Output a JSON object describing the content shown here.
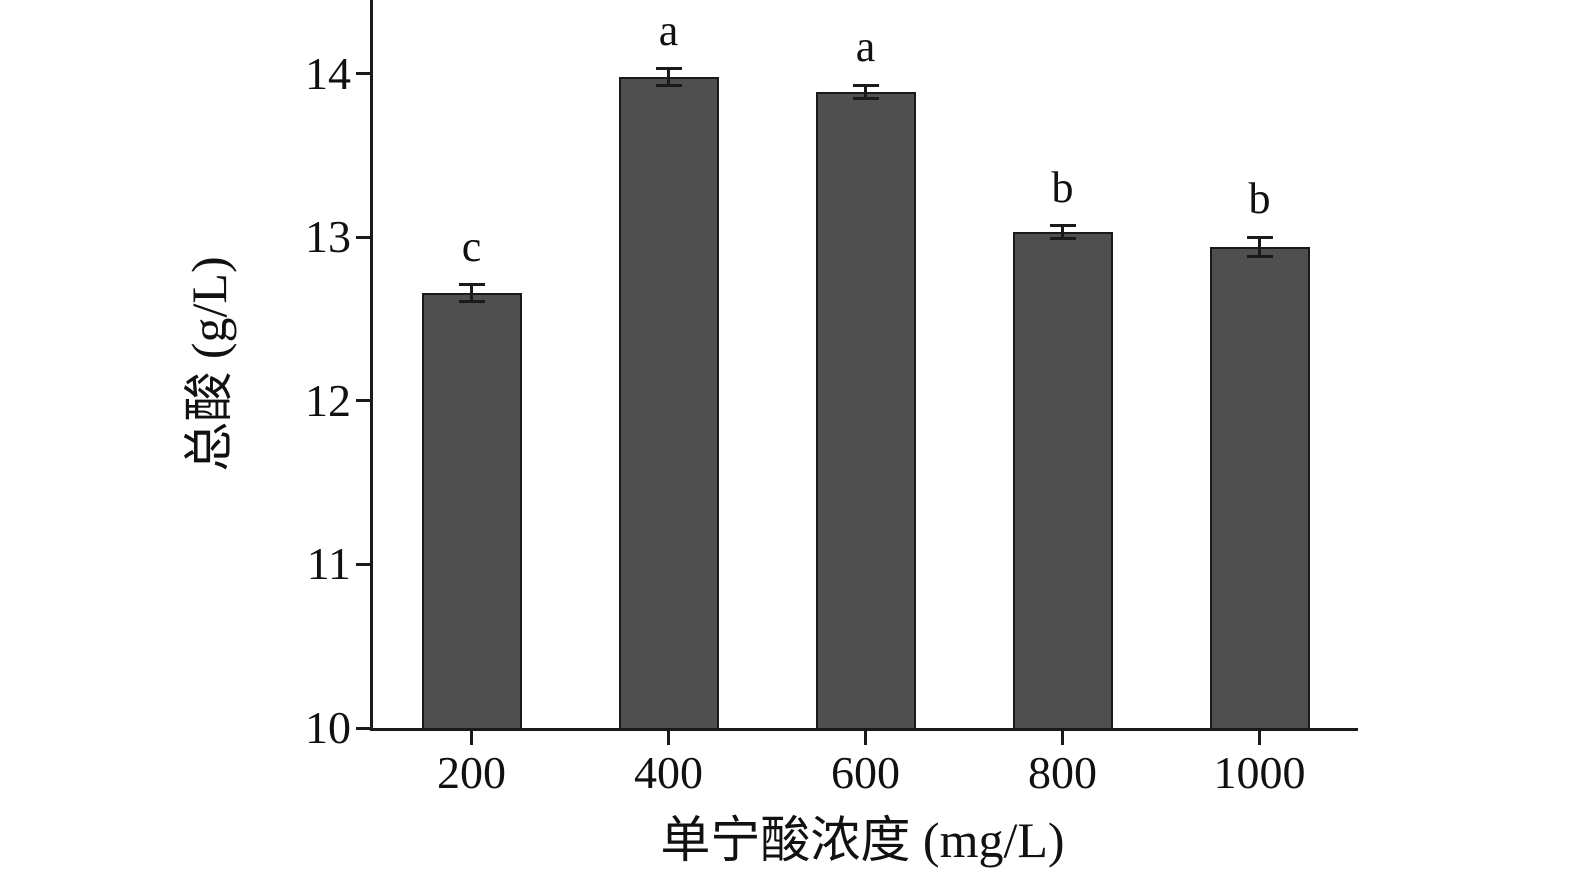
{
  "chart_data": {
    "type": "bar",
    "title": "",
    "xlabel": "单宁酸浓度 (mg/L)",
    "ylabel": "总酸 (g/L)",
    "categories": [
      "200",
      "400",
      "600",
      "800",
      "1000"
    ],
    "values": [
      12.66,
      13.98,
      13.89,
      13.03,
      12.94
    ],
    "errors": [
      0.05,
      0.05,
      0.04,
      0.04,
      0.06
    ],
    "sig_letters": [
      "c",
      "a",
      "a",
      "b",
      "b"
    ],
    "ylim": [
      10,
      14.45
    ],
    "yticks": [
      "10",
      "11",
      "12",
      "13",
      "14"
    ],
    "ytick_values": [
      10,
      11,
      12,
      13,
      14
    ],
    "grid": false,
    "legend_position": "none",
    "bar_color": "#4f4f4f",
    "axis_color": "#1a1a1a"
  }
}
